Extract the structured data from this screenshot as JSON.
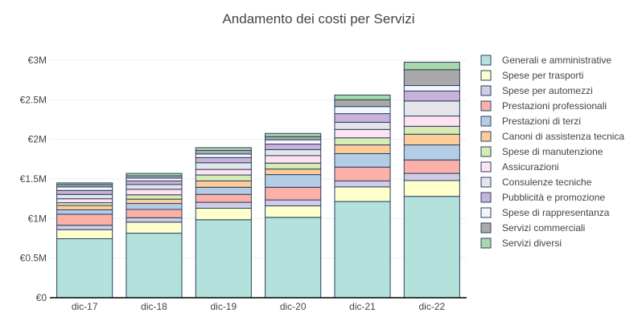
{
  "chart_data": {
    "type": "bar",
    "stacked": true,
    "title": "Andamento dei costi per Servizi",
    "xlabel": "",
    "ylabel": "",
    "categories": [
      "dic-17",
      "dic-18",
      "dic-19",
      "dic-20",
      "dic-21",
      "dic-22"
    ],
    "ylim": [
      0,
      3000000
    ],
    "y_ticks": [
      0,
      500000,
      1000000,
      1500000,
      2000000,
      2500000,
      3000000
    ],
    "y_tick_labels": [
      "€0",
      "€0.5M",
      "€1M",
      "€1.5M",
      "€2M",
      "€2.5M",
      "€3M"
    ],
    "grid": true,
    "legend_position": "right",
    "bar_stroke": "#2a3f5f",
    "series": [
      {
        "name": "Generali e amministrative",
        "color": "#b3e2dc",
        "values": [
          745000,
          815000,
          985000,
          1015000,
          1215000,
          1280000
        ]
      },
      {
        "name": "Spese per trasporti",
        "color": "#ffffcc",
        "values": [
          115000,
          140000,
          145000,
          145000,
          185000,
          200000
        ]
      },
      {
        "name": "Spese per automezzi",
        "color": "#cfcde6",
        "values": [
          55000,
          55000,
          75000,
          75000,
          75000,
          90000
        ]
      },
      {
        "name": "Prestazioni professionali",
        "color": "#fbb0a8",
        "values": [
          140000,
          105000,
          100000,
          160000,
          175000,
          170000
        ]
      },
      {
        "name": "Prestazioni di terzi",
        "color": "#b4cde6",
        "values": [
          55000,
          75000,
          90000,
          160000,
          170000,
          190000
        ]
      },
      {
        "name": "Canoni di assistenza tecnica",
        "color": "#fdcc99",
        "values": [
          55000,
          55000,
          80000,
          70000,
          110000,
          135000
        ]
      },
      {
        "name": "Spese di manutenzione",
        "color": "#d7ebb4",
        "values": [
          35000,
          55000,
          75000,
          75000,
          90000,
          100000
        ]
      },
      {
        "name": "Assicurazioni",
        "color": "#fde3f1",
        "values": [
          50000,
          70000,
          70000,
          95000,
          105000,
          130000
        ]
      },
      {
        "name": "Consulenze tecniche",
        "color": "#e3e5ea",
        "values": [
          55000,
          60000,
          85000,
          75000,
          90000,
          190000
        ]
      },
      {
        "name": "Pubblicità e promozione",
        "color": "#c9b2da",
        "values": [
          50000,
          45000,
          65000,
          70000,
          110000,
          125000
        ]
      },
      {
        "name": "Spese di rappresentanza",
        "color": "#f1f7fd",
        "values": [
          45000,
          35000,
          45000,
          55000,
          90000,
          70000
        ]
      },
      {
        "name": "Servizi commerciali",
        "color": "#a9a9a9",
        "values": [
          30000,
          30000,
          45000,
          40000,
          85000,
          200000
        ]
      },
      {
        "name": "Servizi diversi",
        "color": "#a7d8ab",
        "values": [
          20000,
          30000,
          35000,
          40000,
          60000,
          95000
        ]
      }
    ]
  }
}
